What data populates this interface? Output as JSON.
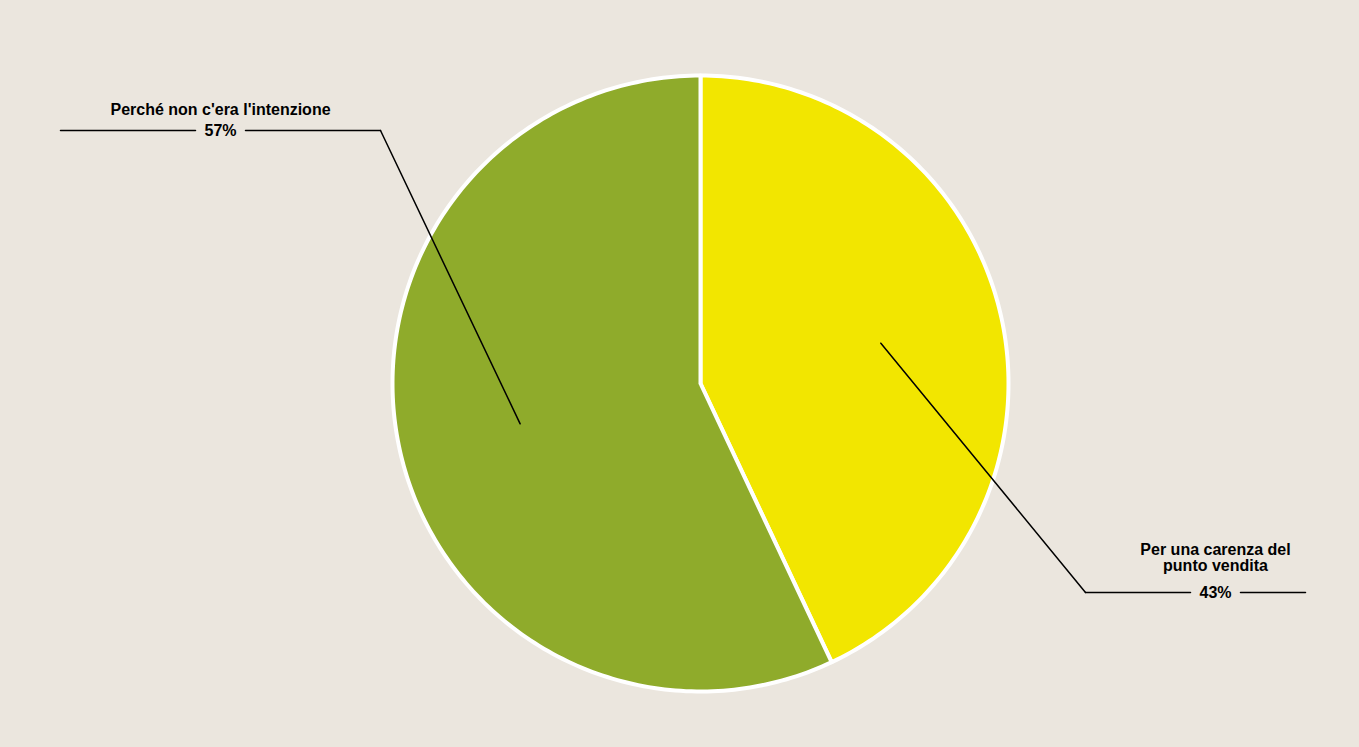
{
  "chart_data": {
    "type": "pie",
    "categories": [
      "Per una carenza del punto vendita",
      "Perché non c'era l'intenzione"
    ],
    "values": [
      43,
      57
    ],
    "value_labels": [
      "43%",
      "57%"
    ],
    "colors": [
      "#f2e600",
      "#8fab2b"
    ],
    "data_labels": true
  }
}
